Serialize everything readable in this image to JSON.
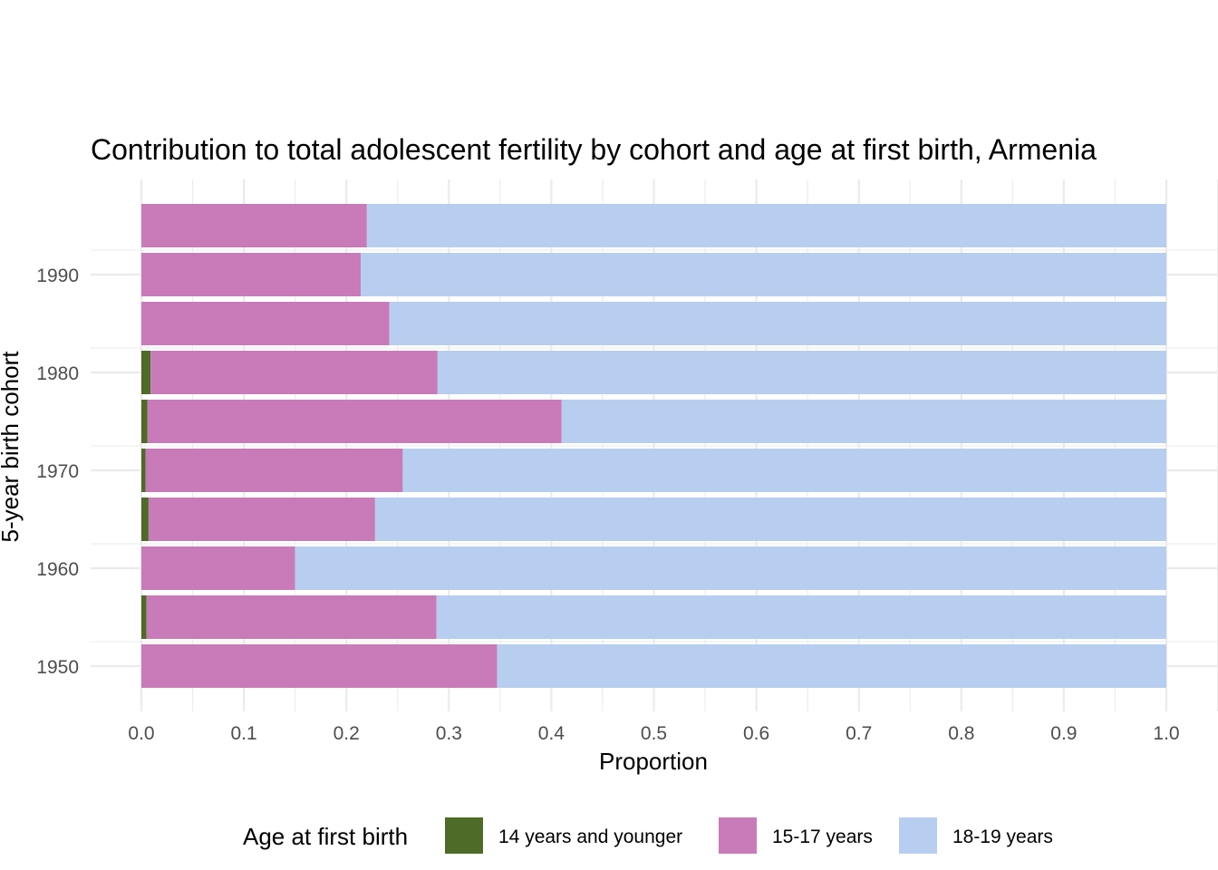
{
  "chart_data": {
    "type": "bar",
    "orientation": "horizontal",
    "stacked": true,
    "title": "Contribution to total adolescent fertility by cohort and age at first birth,  Armenia",
    "xlabel": "Proportion",
    "ylabel": "5-year birth cohort",
    "xlim": [
      0,
      1.0
    ],
    "x_ticks": [
      "0.0",
      "0.1",
      "0.2",
      "0.3",
      "0.4",
      "0.5",
      "0.6",
      "0.7",
      "0.8",
      "0.9",
      "1.0"
    ],
    "y_ticks": [
      "1950",
      "1960",
      "1970",
      "1980",
      "1990"
    ],
    "categories": [
      1950,
      1955,
      1960,
      1965,
      1970,
      1975,
      1980,
      1985,
      1990,
      1995
    ],
    "series": [
      {
        "name": "14 years and younger",
        "color": "#4e6b27",
        "values": [
          0.0,
          0.005,
          0.0,
          0.007,
          0.004,
          0.006,
          0.009,
          0.0,
          0.0,
          0.0
        ]
      },
      {
        "name": "15-17 years",
        "color": "#c87bb8",
        "values": [
          0.347,
          0.283,
          0.15,
          0.221,
          0.251,
          0.404,
          0.28,
          0.242,
          0.214,
          0.22
        ]
      },
      {
        "name": "18-19 years",
        "color": "#b7cef0",
        "values": [
          0.653,
          0.712,
          0.85,
          0.772,
          0.745,
          0.59,
          0.711,
          0.758,
          0.786,
          0.78
        ]
      }
    ],
    "grid": true,
    "legend": {
      "title": "Age at first birth",
      "position": "bottom"
    }
  }
}
